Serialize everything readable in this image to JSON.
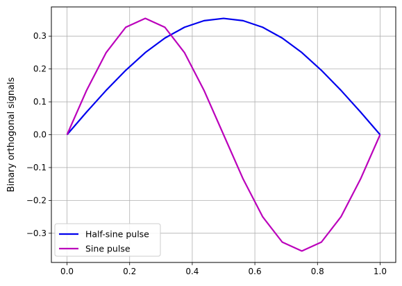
{
  "chart_data": {
    "type": "line",
    "title": "",
    "xlabel": "",
    "ylabel": "Binary orthogonal signals",
    "xlim": [
      -0.05,
      1.05
    ],
    "ylim": [
      -0.3889,
      0.3889
    ],
    "xticks": [
      0.0,
      0.2,
      0.4,
      0.6,
      0.8,
      1.0
    ],
    "xtick_labels": [
      "0.0",
      "0.2",
      "0.4",
      "0.6",
      "0.8",
      "1.0"
    ],
    "yticks": [
      -0.3,
      -0.2,
      -0.1,
      0.0,
      0.1,
      0.2,
      0.3
    ],
    "ytick_labels": [
      "−0.3",
      "−0.2",
      "−0.1",
      "0.0",
      "0.1",
      "0.2",
      "0.3"
    ],
    "grid": true,
    "legend_position": "lower-left",
    "x": [
      0.0,
      0.0625,
      0.125,
      0.1875,
      0.25,
      0.3125,
      0.375,
      0.4375,
      0.5,
      0.5625,
      0.625,
      0.6875,
      0.75,
      0.8125,
      0.875,
      0.9375,
      1.0
    ],
    "series": [
      {
        "name": "Half-sine pulse",
        "color": "#0000ee",
        "values": [
          0.0,
          0.069,
          0.135,
          0.196,
          0.25,
          0.294,
          0.327,
          0.347,
          0.354,
          0.347,
          0.327,
          0.294,
          0.25,
          0.196,
          0.135,
          0.069,
          0.0
        ]
      },
      {
        "name": "Sine pulse",
        "color": "#bb00bb",
        "values": [
          0.0,
          0.135,
          0.25,
          0.327,
          0.354,
          0.327,
          0.25,
          0.135,
          0.0,
          -0.135,
          -0.25,
          -0.327,
          -0.354,
          -0.327,
          -0.25,
          -0.135,
          0.0
        ]
      }
    ]
  }
}
